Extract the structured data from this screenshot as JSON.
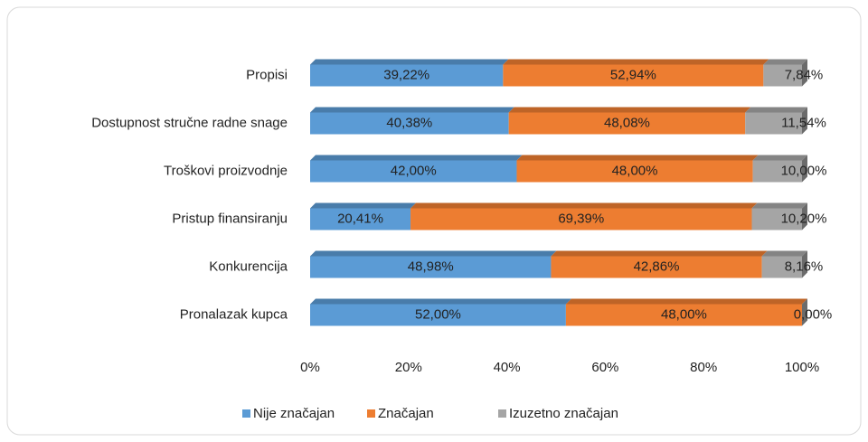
{
  "chart_data": {
    "type": "bar",
    "orientation": "horizontal",
    "stacked": true,
    "categories": [
      "Propisi",
      "Dostupnost stručne radne snage",
      "Troškovi proizvodnje",
      "Pristup finansiranju",
      "Konkurencija",
      "Pronalazak kupca"
    ],
    "series": [
      {
        "name": "Nije značajan",
        "color": "#5b9bd5",
        "values": [
          39.22,
          40.38,
          42.0,
          20.41,
          48.98,
          52.0
        ],
        "value_labels": [
          "39,22%",
          "40,38%",
          "42,00%",
          "20,41%",
          "48,98%",
          "52,00%"
        ]
      },
      {
        "name": "Značajan",
        "color": "#ed7d31",
        "values": [
          52.94,
          48.08,
          48.0,
          69.39,
          42.86,
          48.0
        ],
        "value_labels": [
          "52,94%",
          "48,08%",
          "48,00%",
          "69,39%",
          "42,86%",
          "48,00%"
        ]
      },
      {
        "name": "Izuzetno značajan",
        "color": "#a5a5a5",
        "values": [
          7.84,
          11.54,
          10.0,
          10.2,
          8.16,
          0.0
        ],
        "value_labels": [
          "7,84%",
          "11,54%",
          "10,00%",
          "10,20%",
          "8,16%",
          "0,00%"
        ]
      }
    ],
    "xlim": [
      0,
      100
    ],
    "xticks": [
      {
        "value": 0,
        "label": "0%"
      },
      {
        "value": 20,
        "label": "20%"
      },
      {
        "value": 40,
        "label": "40%"
      },
      {
        "value": 60,
        "label": "60%"
      },
      {
        "value": 80,
        "label": "80%"
      },
      {
        "value": 100,
        "label": "100%"
      }
    ],
    "legend": "bottom"
  }
}
